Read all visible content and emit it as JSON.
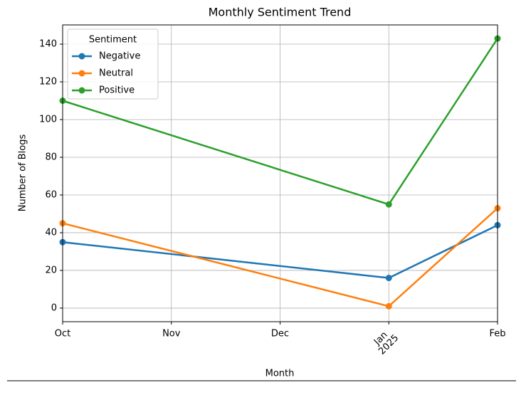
{
  "chart_data": {
    "type": "line",
    "title": "Monthly Sentiment Trend",
    "x_label": "Month",
    "y_label": "Number of Blogs",
    "x": [
      0,
      3,
      4
    ],
    "xlim": [
      0,
      4
    ],
    "xticks": [
      {
        "value": 0,
        "label": "Oct"
      },
      {
        "value": 1,
        "label": "Nov"
      },
      {
        "value": 2,
        "label": "Dec"
      },
      {
        "value": 3,
        "label": "Jan"
      },
      {
        "value": 4,
        "label": "Feb"
      }
    ],
    "year_label": "2025",
    "ylim": [
      -7.2,
      150.2
    ],
    "yticks": [
      0,
      20,
      40,
      60,
      80,
      100,
      120,
      140
    ],
    "grid": true,
    "legend_title": "Sentiment",
    "legend_position": "upper left",
    "series": [
      {
        "name": "Negative",
        "color": "#1f77b4",
        "values": [
          35,
          16,
          44
        ]
      },
      {
        "name": "Neutral",
        "color": "#ff7f0e",
        "values": [
          45,
          1,
          53
        ]
      },
      {
        "name": "Positive",
        "color": "#2ca02c",
        "values": [
          110,
          55,
          143
        ]
      }
    ]
  }
}
